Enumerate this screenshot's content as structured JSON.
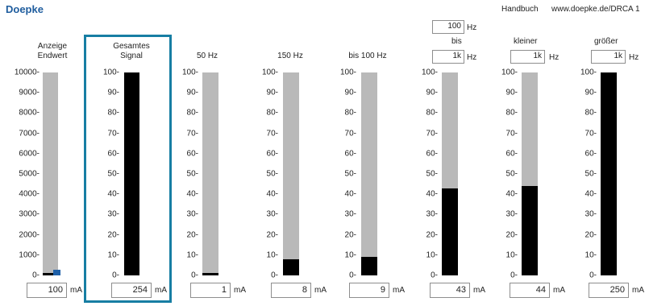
{
  "header": {
    "brand": "Doepke",
    "handbook": "Handbuch",
    "url": "www.doepke.de/DRCA 1"
  },
  "filters": {
    "bis_low_value": "100",
    "bis_low_unit": "Hz",
    "bis_label": "bis",
    "bis_high_value": "1k",
    "bis_high_unit": "Hz",
    "kleiner_label": "kleiner",
    "kleiner_value": "1k",
    "kleiner_unit": "Hz",
    "groesser_label": "größer",
    "groesser_value": "1k",
    "groesser_unit": "Hz"
  },
  "meters": [
    {
      "id": "anzeige",
      "label1": "Anzeige",
      "label2": "Endwert",
      "ticks": [
        "10000-",
        "9000-",
        "8000-",
        "7000-",
        "6000-",
        "5000-",
        "4000-",
        "3000-",
        "2000-",
        "1000-",
        "0-"
      ],
      "value": "100",
      "unit": "mA",
      "level": 0.01
    },
    {
      "id": "gesamt",
      "label1": "Gesamtes",
      "label2": "Signal",
      "ticks": [
        "100-",
        "90-",
        "80-",
        "70-",
        "60-",
        "50-",
        "40-",
        "30-",
        "20-",
        "10-",
        "0-"
      ],
      "value": "254",
      "unit": "mA",
      "level": 1.0
    },
    {
      "id": "f50",
      "label1": "",
      "label2": "50 Hz",
      "ticks": [
        "100-",
        "90-",
        "80-",
        "70-",
        "60-",
        "50-",
        "40-",
        "30-",
        "20-",
        "10-",
        "0-"
      ],
      "value": "1",
      "unit": "mA",
      "level": 0.01
    },
    {
      "id": "f150",
      "label1": "",
      "label2": "150 Hz",
      "ticks": [
        "100-",
        "90-",
        "80-",
        "70-",
        "60-",
        "50-",
        "40-",
        "30-",
        "20-",
        "10-",
        "0-"
      ],
      "value": "8",
      "unit": "mA",
      "level": 0.08
    },
    {
      "id": "bis100",
      "label1": "",
      "label2": "bis 100 Hz",
      "ticks": [
        "100-",
        "90-",
        "80-",
        "70-",
        "60-",
        "50-",
        "40-",
        "30-",
        "20-",
        "10-",
        "0-"
      ],
      "value": "9",
      "unit": "mA",
      "level": 0.09
    },
    {
      "id": "bisband",
      "label1": "",
      "label2": "",
      "ticks": [
        "100-",
        "90-",
        "80-",
        "70-",
        "60-",
        "50-",
        "40-",
        "30-",
        "20-",
        "10-",
        "0-"
      ],
      "value": "43",
      "unit": "mA",
      "level": 0.43
    },
    {
      "id": "kleiner",
      "label1": "",
      "label2": "",
      "ticks": [
        "100-",
        "90-",
        "80-",
        "70-",
        "60-",
        "50-",
        "40-",
        "30-",
        "20-",
        "10-",
        "0-"
      ],
      "value": "44",
      "unit": "mA",
      "level": 0.44
    },
    {
      "id": "groesser",
      "label1": "",
      "label2": "",
      "ticks": [
        "100-",
        "90-",
        "80-",
        "70-",
        "60-",
        "50-",
        "40-",
        "30-",
        "20-",
        "10-",
        "0-"
      ],
      "value": "250",
      "unit": "mA",
      "level": 1.0
    }
  ],
  "colors": {
    "track": "#b9b9b9",
    "fill": "#000000",
    "highlight": "#177ea3",
    "brand": "#1f5d9e",
    "marker": "#1e5fa7"
  }
}
